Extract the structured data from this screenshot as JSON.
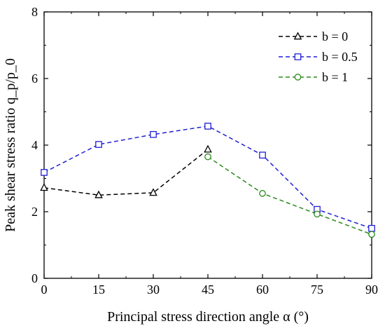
{
  "chart_data": {
    "type": "line",
    "xlabel": "Principal stress direction angle α (°)",
    "ylabel": "Peak shear stress ratio q_p/p_0",
    "xlim": [
      0,
      90
    ],
    "ylim": [
      0,
      8
    ],
    "xticks": [
      0,
      15,
      30,
      45,
      60,
      75,
      90
    ],
    "yticks": [
      0,
      2,
      4,
      6,
      8
    ],
    "grid": false,
    "legend_position": "top-right",
    "x": [
      0,
      15,
      30,
      45,
      60,
      75,
      90
    ],
    "series": [
      {
        "name": "b = 0",
        "marker": "triangle",
        "color": "#000000",
        "line_style": "dashed",
        "x": [
          0,
          15,
          30,
          45
        ],
        "values": [
          2.72,
          2.5,
          2.57,
          3.87
        ]
      },
      {
        "name": "b = 0.5",
        "marker": "square",
        "color": "#1f1fd6",
        "line_style": "dashed",
        "x": [
          0,
          15,
          30,
          45,
          60,
          75,
          90
        ],
        "values": [
          3.18,
          4.02,
          4.32,
          4.57,
          3.7,
          2.07,
          1.5
        ]
      },
      {
        "name": "b = 1",
        "marker": "circle",
        "color": "#2a8a1a",
        "line_style": "dashed",
        "x": [
          45,
          60,
          75,
          90
        ],
        "values": [
          3.65,
          2.55,
          1.93,
          1.32
        ]
      }
    ]
  }
}
